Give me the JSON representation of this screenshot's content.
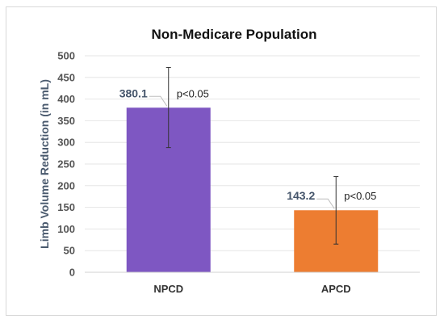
{
  "chart_data": {
    "type": "bar",
    "title": "Non-Medicare Population",
    "ylabel": "Limb Volume Reduction (in mL)",
    "xlabel": "",
    "categories": [
      "NPCD",
      "APCD"
    ],
    "values": [
      380.1,
      143.2
    ],
    "value_labels": [
      "380.1",
      "143.2"
    ],
    "error_bars": [
      {
        "low": 288,
        "high": 473
      },
      {
        "low": 65,
        "high": 221
      }
    ],
    "annotations": [
      "p<0.05",
      "p<0.05"
    ],
    "colors": [
      "#7e57c2",
      "#ed7d31"
    ],
    "ylim": [
      0,
      500
    ],
    "yticks": [
      0,
      50,
      100,
      150,
      200,
      250,
      300,
      350,
      400,
      450,
      500
    ],
    "grid": true,
    "legend": "none"
  }
}
